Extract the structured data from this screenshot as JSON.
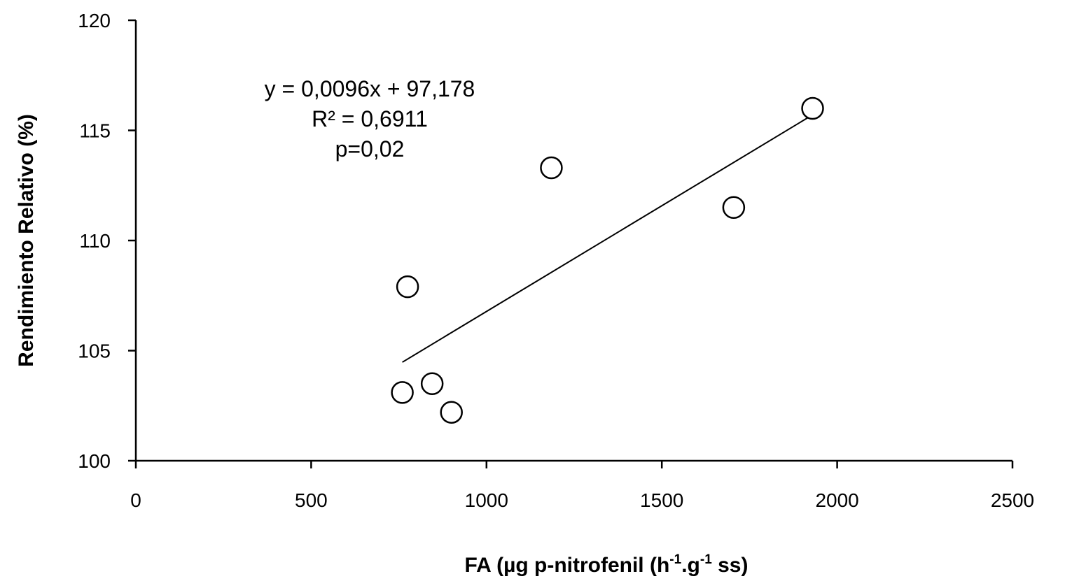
{
  "chart_data": {
    "type": "scatter",
    "title": "",
    "xlabel": "FA (µg p-nitrofenil (h",
    "xlabel_sup1": "-1",
    "xlabel_mid": ".g",
    "xlabel_sup2": "-1",
    "xlabel_end": " ss)",
    "ylabel": "Rendimiento Relativo (%)",
    "xlim": [
      0,
      2500
    ],
    "ylim": [
      100,
      120
    ],
    "xticks": [
      0,
      500,
      1000,
      1500,
      2000,
      2500
    ],
    "yticks": [
      100,
      105,
      110,
      115,
      120
    ],
    "xtick_labels": [
      "0",
      "500",
      "1000",
      "1500",
      "2000",
      "2500"
    ],
    "ytick_labels": [
      "100",
      "105",
      "110",
      "115",
      "120"
    ],
    "grid": false,
    "series": [
      {
        "x": [
          760,
          775,
          845,
          900,
          1185,
          1705,
          1930
        ],
        "y": [
          103.1,
          107.9,
          103.5,
          102.2,
          113.3,
          111.5,
          116.0
        ],
        "marker": "open-circle"
      }
    ],
    "trendline": {
      "x_range": [
        760,
        1930
      ],
      "slope": 0.0096,
      "intercept": 97.178
    },
    "annotations": {
      "equation": "y = 0,0096x + 97,178",
      "r2": "R² = 0,6911",
      "pvalue": "p=0,02"
    },
    "colors": {
      "marker_stroke": "#000000",
      "marker_fill": "#ffffff",
      "axis": "#000000",
      "line": "#000000"
    }
  }
}
